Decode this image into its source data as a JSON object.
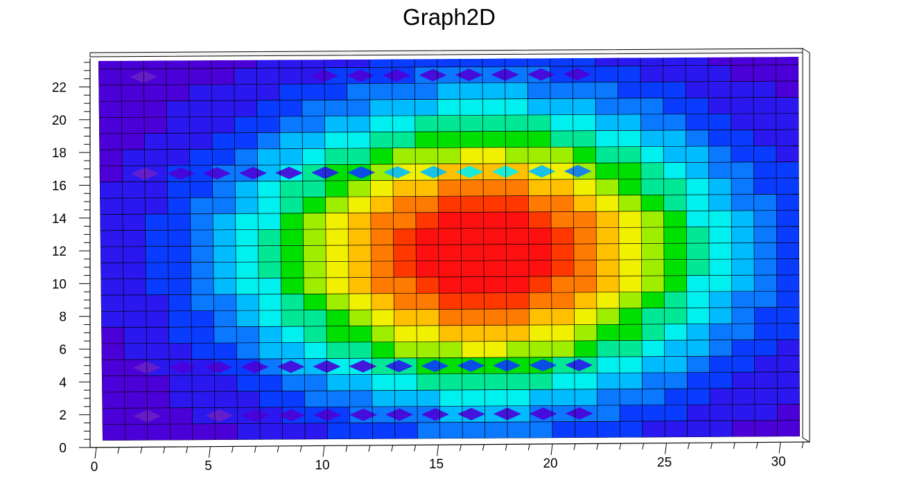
{
  "chart_data": {
    "type": "heatmap",
    "title": "Graph2D",
    "xlabel": "",
    "ylabel": "",
    "xlim": [
      0,
      31
    ],
    "ylim": [
      0,
      23.5
    ],
    "x_ticks": [
      "0",
      "5",
      "10",
      "15",
      "20",
      "25",
      "30"
    ],
    "y_ticks": [
      "0",
      "2",
      "4",
      "6",
      "8",
      "10",
      "12",
      "14",
      "16",
      "18",
      "20",
      "22"
    ],
    "peak": {
      "x": 17,
      "y": 11.5
    },
    "surface_grid": {
      "x_step": 1,
      "y_step": 1,
      "sigma_x": 7.5,
      "sigma_y": 6.4
    },
    "depression_rows_y": [
      1.5,
      4.5,
      16.5,
      22.5
    ],
    "palette": [
      "#4b00d8",
      "#2a18ef",
      "#0a3cff",
      "#0a78ff",
      "#00bcff",
      "#00f0f0",
      "#00e896",
      "#00e000",
      "#9fee00",
      "#f0f000",
      "#ffc000",
      "#ff7a00",
      "#ff3800",
      "#ff1010"
    ],
    "grid": true,
    "legend": "none"
  }
}
